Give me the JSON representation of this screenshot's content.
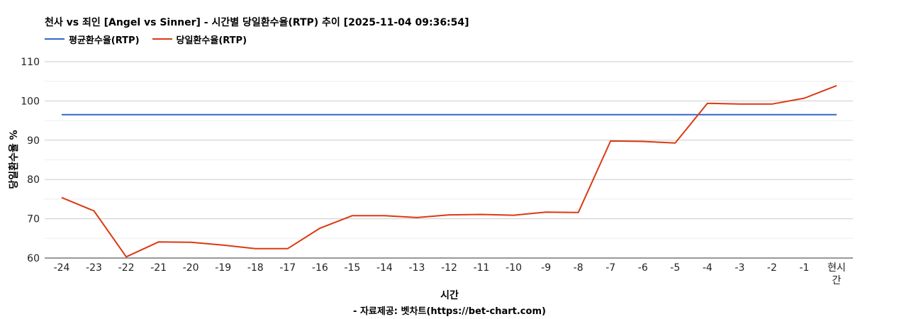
{
  "chart_data": {
    "type": "line",
    "title": "천사 vs 죄인 [Angel vs Sinner] - 시간별 당일환수율(RTP) 추이 [2025-11-04 09:36:54]",
    "xlabel": "시간",
    "ylabel": "당일환수율 %",
    "source": "- 자료제공: 벳차트(https://bet-chart.com)",
    "categories": [
      "-24",
      "-23",
      "-22",
      "-21",
      "-20",
      "-19",
      "-18",
      "-17",
      "-16",
      "-15",
      "-14",
      "-13",
      "-12",
      "-11",
      "-10",
      "-9",
      "-8",
      "-7",
      "-6",
      "-5",
      "-4",
      "-3",
      "-2",
      "-1",
      "현시간"
    ],
    "ylim": [
      60,
      110
    ],
    "yticks": [
      60,
      70,
      80,
      90,
      100,
      110
    ],
    "grid": true,
    "legend_position": "top-left",
    "series": [
      {
        "name": "평균환수율(RTP)",
        "color": "#3366cc",
        "values": [
          96.5,
          96.5,
          96.5,
          96.5,
          96.5,
          96.5,
          96.5,
          96.5,
          96.5,
          96.5,
          96.5,
          96.5,
          96.5,
          96.5,
          96.5,
          96.5,
          96.5,
          96.5,
          96.5,
          96.5,
          96.5,
          96.5,
          96.5,
          96.5,
          96.5
        ]
      },
      {
        "name": "당일환수율(RTP)",
        "color": "#dc3912",
        "values": [
          75.4,
          72.0,
          60.3,
          64.1,
          64.0,
          63.3,
          62.4,
          62.4,
          67.6,
          70.8,
          70.8,
          70.3,
          71.0,
          71.1,
          70.9,
          71.7,
          71.6,
          89.8,
          89.7,
          89.3,
          99.4,
          99.2,
          99.2,
          100.7,
          103.9
        ]
      }
    ]
  }
}
